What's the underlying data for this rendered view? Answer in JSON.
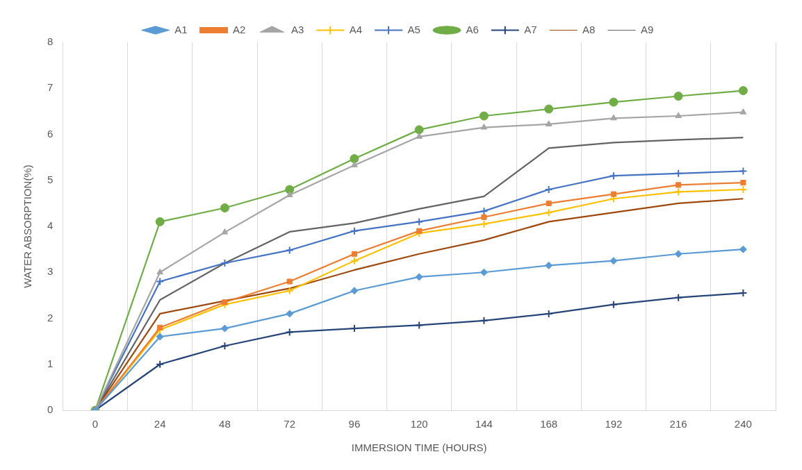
{
  "chart_data": {
    "type": "line",
    "xlabel": "IMMERSION TIME (HOURS)",
    "ylabel": "WATER ABSORPTION(%)",
    "categories": [
      "0",
      "24",
      "48",
      "72",
      "96",
      "120",
      "144",
      "168",
      "192",
      "216",
      "240"
    ],
    "ylim": [
      0,
      8
    ],
    "yticks": [
      0,
      1,
      2,
      3,
      4,
      5,
      6,
      7,
      8
    ],
    "grid": "x",
    "legend": "top",
    "series": [
      {
        "name": "A1",
        "color": "#5b9bd5",
        "marker": "diamond",
        "values": [
          0,
          1.6,
          1.78,
          2.1,
          2.6,
          2.9,
          3.0,
          3.15,
          3.25,
          3.4,
          3.5
        ]
      },
      {
        "name": "A2",
        "color": "#ed7d31",
        "marker": "square",
        "values": [
          0,
          1.8,
          2.35,
          2.8,
          3.4,
          3.9,
          4.2,
          4.5,
          4.7,
          4.9,
          4.95
        ]
      },
      {
        "name": "A3",
        "color": "#a5a5a5",
        "marker": "triangle",
        "values": [
          0,
          3.0,
          3.87,
          4.68,
          5.33,
          5.95,
          6.15,
          6.22,
          6.35,
          6.4,
          6.48
        ]
      },
      {
        "name": "A4",
        "color": "#ffc000",
        "marker": "cross",
        "values": [
          0,
          1.75,
          2.3,
          2.6,
          3.25,
          3.85,
          4.05,
          4.3,
          4.6,
          4.75,
          4.8
        ]
      },
      {
        "name": "A5",
        "color": "#4472c4",
        "marker": "cross",
        "values": [
          0,
          2.8,
          3.2,
          3.48,
          3.9,
          4.1,
          4.33,
          4.8,
          5.1,
          5.15,
          5.2
        ]
      },
      {
        "name": "A6",
        "color": "#70ad47",
        "marker": "circle",
        "values": [
          0,
          4.1,
          4.4,
          4.8,
          5.47,
          6.1,
          6.4,
          6.55,
          6.7,
          6.83,
          6.95
        ]
      },
      {
        "name": "A7",
        "color": "#264478",
        "marker": "cross",
        "values": [
          0,
          1.0,
          1.4,
          1.7,
          1.78,
          1.85,
          1.95,
          2.1,
          2.3,
          2.45,
          2.55
        ]
      },
      {
        "name": "A8",
        "color": "#9e480e",
        "marker": "none",
        "values": [
          0,
          2.1,
          2.38,
          2.65,
          3.05,
          3.4,
          3.7,
          4.1,
          4.3,
          4.5,
          4.6
        ]
      },
      {
        "name": "A9",
        "color": "#636363",
        "marker": "none",
        "values": [
          0,
          2.4,
          3.2,
          3.88,
          4.07,
          4.38,
          4.65,
          5.7,
          5.82,
          5.88,
          5.93
        ]
      }
    ]
  }
}
